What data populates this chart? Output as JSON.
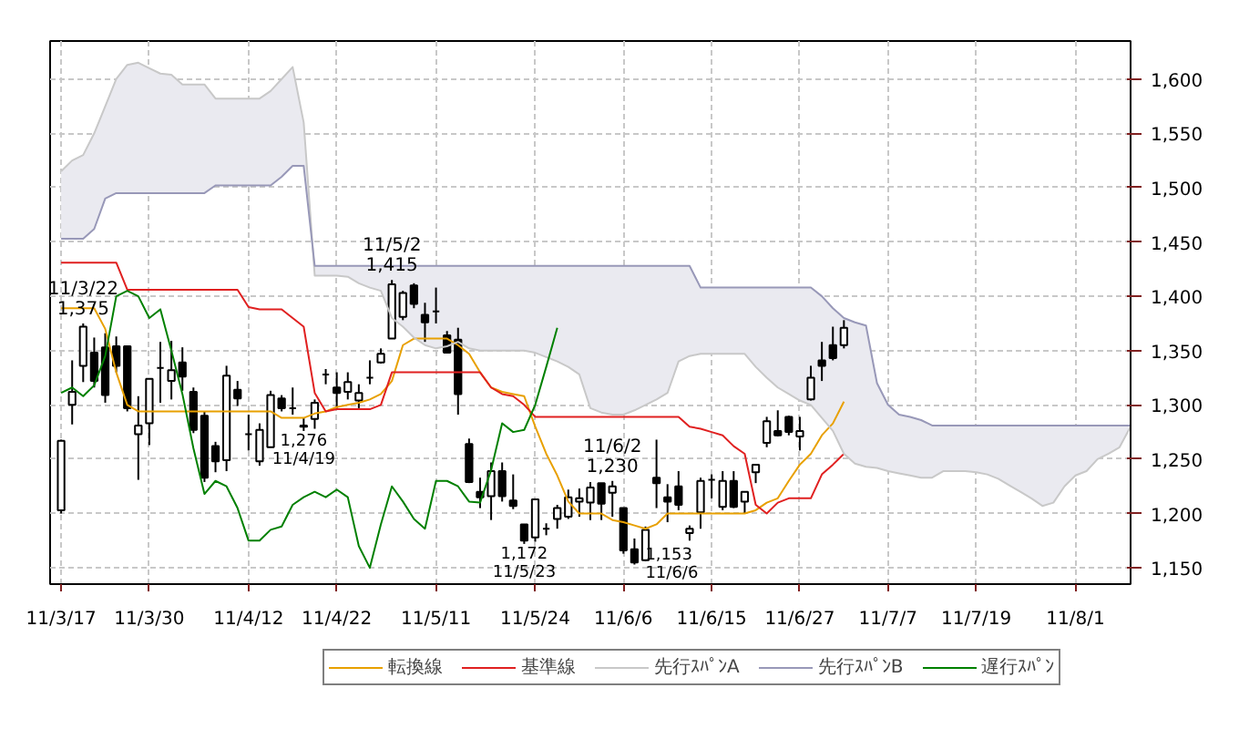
{
  "chart_data": {
    "type": "candlestick",
    "color": "#000000",
    "categories": [
      "11/3/17",
      null,
      null,
      null,
      null,
      null,
      null,
      null,
      "11/3/30",
      null,
      null,
      null,
      null,
      null,
      null,
      null,
      null,
      "11/4/12",
      null,
      null,
      null,
      null,
      null,
      null,
      null,
      "11/4/22",
      null,
      null,
      null,
      null,
      null,
      null,
      null,
      null,
      "11/5/11",
      null,
      null,
      null,
      null,
      null,
      null,
      null,
      null,
      "11/5/24",
      null,
      null,
      null,
      null,
      null,
      null,
      null,
      "11/6/6",
      null,
      null,
      null,
      null,
      null,
      null,
      null,
      "11/6/15",
      null,
      null,
      null,
      null,
      null,
      null,
      null,
      "11/6/27",
      null,
      null,
      null,
      null,
      null,
      null,
      null,
      "11/7/7",
      null,
      null,
      null,
      null,
      null,
      null,
      null,
      "11/7/19",
      null,
      null,
      null,
      null,
      null,
      null,
      null,
      null,
      "11/8/1",
      null,
      null,
      null,
      null,
      null
    ],
    "ohlc": [
      [
        1203,
        1268,
        1200,
        1267
      ],
      [
        1300,
        1341,
        1282,
        1312
      ],
      [
        1336,
        1375,
        1321,
        1372
      ],
      [
        1348,
        1362,
        1316,
        1322
      ],
      [
        1353,
        1366,
        1302,
        1309
      ],
      [
        1354,
        1363,
        1330,
        1336
      ],
      [
        1354,
        1354,
        1294,
        1297
      ],
      [
        1273,
        1308,
        1231,
        1281
      ],
      [
        1283,
        1324,
        1263,
        1324
      ],
      [
        1334,
        1358,
        1302,
        1334
      ],
      [
        1322,
        1359,
        1305,
        1332
      ],
      [
        1339,
        1353,
        1313,
        1326
      ],
      [
        1312,
        1316,
        1274,
        1277
      ],
      [
        1290,
        1294,
        1229,
        1233
      ],
      [
        1262,
        1266,
        1238,
        1248
      ],
      [
        1249,
        1336,
        1239,
        1327
      ],
      [
        1314,
        1322,
        1299,
        1306
      ],
      [
        1273,
        1291,
        1258,
        1273
      ],
      [
        1248,
        1283,
        1244,
        1277
      ],
      [
        1261,
        1313,
        1261,
        1309
      ],
      [
        1306,
        1309,
        1294,
        1297
      ],
      [
        1297,
        1316,
        1291,
        1297
      ],
      [
        1280,
        1288,
        1276,
        1281
      ],
      [
        1287,
        1305,
        1278,
        1302
      ],
      [
        1328,
        1333,
        1319,
        1328
      ],
      [
        1316,
        1330,
        1297,
        1311
      ],
      [
        1312,
        1330,
        1305,
        1321
      ],
      [
        1304,
        1319,
        1297,
        1311
      ],
      [
        1325,
        1341,
        1319,
        1325
      ],
      [
        1339,
        1352,
        1338,
        1347
      ],
      [
        1361,
        1415,
        1361,
        1411
      ],
      [
        1381,
        1405,
        1378,
        1403
      ],
      [
        1410,
        1412,
        1389,
        1393
      ],
      [
        1383,
        1394,
        1358,
        1376
      ],
      [
        1386,
        1408,
        1375,
        1386
      ],
      [
        1364,
        1368,
        1348,
        1348
      ],
      [
        1360,
        1371,
        1291,
        1310
      ],
      [
        1264,
        1269,
        1228,
        1229
      ],
      [
        1220,
        1233,
        1205,
        1215
      ],
      [
        1216,
        1247,
        1194,
        1239
      ],
      [
        1239,
        1247,
        1211,
        1216
      ],
      [
        1212,
        1236,
        1204,
        1207
      ],
      [
        1190,
        1190,
        1172,
        1175
      ],
      [
        1178,
        1213,
        1174,
        1213
      ],
      [
        1186,
        1191,
        1180,
        1186
      ],
      [
        1195,
        1208,
        1186,
        1205
      ],
      [
        1197,
        1222,
        1195,
        1215
      ],
      [
        1211,
        1223,
        1197,
        1214
      ],
      [
        1210,
        1229,
        1194,
        1224
      ],
      [
        1228,
        1228,
        1194,
        1209
      ],
      [
        1219,
        1230,
        1197,
        1225
      ],
      [
        1205,
        1205,
        1163,
        1166
      ],
      [
        1167,
        1177,
        1153,
        1155
      ],
      [
        1157,
        1188,
        1156,
        1185
      ],
      [
        1233,
        1268,
        1205,
        1228
      ],
      [
        1215,
        1227,
        1192,
        1211
      ],
      [
        1225,
        1239,
        1203,
        1208
      ],
      [
        1182,
        1189,
        1175,
        1186
      ],
      [
        1201,
        1233,
        1186,
        1230
      ],
      [
        1231,
        1236,
        1214,
        1231
      ],
      [
        1206,
        1239,
        1203,
        1230
      ],
      [
        1230,
        1239,
        1205,
        1206
      ],
      [
        1211,
        1220,
        1200,
        1220
      ],
      [
        1238,
        1245,
        1228,
        1245
      ],
      [
        1265,
        1289,
        1261,
        1285
      ],
      [
        1276,
        1295,
        1271,
        1272
      ],
      [
        1289,
        1290,
        1272,
        1275
      ],
      [
        1271,
        1289,
        1258,
        1276
      ],
      [
        1305,
        1336,
        1304,
        1325
      ],
      [
        1341,
        1358,
        1322,
        1336
      ],
      [
        1355,
        1372,
        1341,
        1343
      ],
      [
        1355,
        1378,
        1352,
        1371
      ],
      null,
      null,
      null,
      null,
      null,
      null,
      null,
      null,
      null,
      null,
      null,
      null,
      null,
      null,
      null,
      null,
      null,
      null,
      null,
      null,
      null,
      null,
      null,
      null,
      null,
      null
    ],
    "series": [
      {
        "type": "line",
        "name": "転換線",
        "color": "#e8a000",
        "values": [
          1389,
          1389,
          1389,
          1389,
          1370,
          1330,
          1300,
          1294,
          1294,
          1294,
          1294,
          1294,
          1294,
          1294,
          1294,
          1294,
          1294,
          1294,
          1294,
          1294,
          1288,
          1288,
          1288,
          1292,
          1294,
          1298,
          1300,
          1302,
          1305,
          1310,
          1322,
          1355,
          1361,
          1361,
          1361,
          1361,
          1355,
          1347,
          1330,
          1316,
          1312,
          1310,
          1308,
          1280,
          1255,
          1235,
          1211,
          1200,
          1200,
          1200,
          1194,
          1192,
          1189,
          1186,
          1190,
          1200,
          1200,
          1200,
          1200,
          1200,
          1200,
          1200,
          1200,
          1203,
          1210,
          1214,
          1230,
          1245,
          1255,
          1272,
          1283,
          1303,
          null,
          null,
          null,
          null,
          null,
          null,
          null,
          null,
          null,
          null,
          null,
          null,
          null,
          null,
          null,
          null,
          null,
          null,
          null,
          null,
          null,
          null,
          null,
          null,
          null,
          null
        ]
      },
      {
        "type": "line",
        "name": "基準線",
        "color": "#e02020",
        "values": [
          1431,
          1431,
          1431,
          1431,
          1431,
          1431,
          1406,
          1406,
          1406,
          1406,
          1406,
          1406,
          1406,
          1406,
          1406,
          1406,
          1406,
          1390,
          1388,
          1388,
          1388,
          1380,
          1372,
          1311,
          1294,
          1296,
          1296,
          1296,
          1296,
          1300,
          1330,
          1330,
          1330,
          1330,
          1330,
          1330,
          1330,
          1330,
          1330,
          1316,
          1310,
          1308,
          1300,
          1289,
          1289,
          1289,
          1289,
          1289,
          1289,
          1289,
          1289,
          1289,
          1289,
          1289,
          1289,
          1289,
          1289,
          1280,
          1278,
          1275,
          1272,
          1262,
          1255,
          1208,
          1200,
          1210,
          1214,
          1214,
          1214,
          1236,
          1245,
          1255,
          null,
          null,
          null,
          null,
          null,
          null,
          null,
          null,
          null,
          null,
          null,
          null,
          null,
          null,
          null,
          null,
          null,
          null,
          null,
          null,
          null,
          null,
          null,
          null,
          null,
          null
        ]
      },
      {
        "type": "line",
        "name": "先行ｽﾊﾟﾝA",
        "color": "#c8c8c8",
        "values": [
          1515,
          1525,
          1530,
          1550,
          1575,
          1600,
          1613,
          1615,
          1610,
          1605,
          1604,
          1595,
          1595,
          1595,
          1582,
          1582,
          1582,
          1582,
          1582,
          1589,
          1600,
          1611,
          1560,
          1419,
          1419,
          1419,
          1418,
          1412,
          1408,
          1405,
          1380,
          1372,
          1362,
          1355,
          1352,
          1354,
          1358,
          1352,
          1350,
          1350,
          1350,
          1350,
          1350,
          1348,
          1344,
          1340,
          1335,
          1328,
          1297,
          1293,
          1291,
          1291,
          1295,
          1300,
          1305,
          1311,
          1340,
          1345,
          1347,
          1347,
          1347,
          1347,
          1347,
          1335,
          1325,
          1316,
          1310,
          1304,
          1300,
          1288,
          1276,
          1255,
          1246,
          1243,
          1242,
          1239,
          1237,
          1235,
          1233,
          1233,
          1239,
          1239,
          1239,
          1238,
          1236,
          1232,
          1226,
          1220,
          1214,
          1207,
          1210,
          1225,
          1235,
          1239,
          1250,
          1255,
          1261,
          1280
        ]
      },
      {
        "type": "line",
        "name": "先行ｽﾊﾟﾝB",
        "color": "#9898b8",
        "values": [
          1453,
          1453,
          1453,
          1462,
          1490,
          1495,
          1495,
          1495,
          1495,
          1495,
          1495,
          1495,
          1495,
          1495,
          1502,
          1502,
          1502,
          1502,
          1502,
          1502,
          1510,
          1520,
          1520,
          1428,
          1428,
          1428,
          1428,
          1428,
          1428,
          1428,
          1428,
          1428,
          1428,
          1428,
          1428,
          1428,
          1428,
          1428,
          1428,
          1428,
          1428,
          1428,
          1428,
          1428,
          1428,
          1428,
          1428,
          1428,
          1428,
          1428,
          1428,
          1428,
          1428,
          1428,
          1428,
          1428,
          1428,
          1428,
          1408,
          1408,
          1408,
          1408,
          1408,
          1408,
          1408,
          1408,
          1408,
          1408,
          1408,
          1400,
          1389,
          1380,
          1376,
          1373,
          1320,
          1300,
          1291,
          1289,
          1286,
          1281,
          1281,
          1281,
          1281,
          1281,
          1281,
          1281,
          1281,
          1281,
          1281,
          1281,
          1281,
          1281,
          1281,
          1281,
          1281,
          1281,
          1281,
          1281
        ]
      },
      {
        "type": "line",
        "name": "遅行ｽﾊﾟﾝ",
        "color": "#008000",
        "values": [
          1311,
          1316,
          1308,
          1318,
          1345,
          1400,
          1405,
          1400,
          1380,
          1388,
          1350,
          1310,
          1260,
          1218,
          1230,
          1225,
          1205,
          1175,
          1175,
          1185,
          1188,
          1208,
          1215,
          1220,
          1215,
          1222,
          1215,
          1170,
          1150,
          1190,
          1225,
          1211,
          1195,
          1186,
          1230,
          1230,
          1225,
          1211,
          1210,
          1240,
          1283,
          1275,
          1277,
          1300,
          1335,
          1371,
          null,
          null,
          null,
          null,
          null,
          null,
          null,
          null,
          null,
          null,
          null,
          null,
          null,
          null,
          null,
          null,
          null,
          null,
          null,
          null,
          null,
          null,
          null,
          null,
          null,
          null,
          null,
          null,
          null,
          null,
          null,
          null,
          null,
          null,
          null,
          null,
          null,
          null,
          null,
          null,
          null,
          null,
          null,
          null,
          null,
          null,
          null,
          null,
          null,
          null,
          null,
          null
        ]
      }
    ],
    "ylim": [
      1135,
      1635
    ],
    "yticks": [
      {
        "value": 1150,
        "label": "1,150"
      },
      {
        "value": 1200,
        "label": "1,200"
      },
      {
        "value": 1250,
        "label": "1,250"
      },
      {
        "value": 1300,
        "label": "1,300"
      },
      {
        "value": 1350,
        "label": "1,350"
      },
      {
        "value": 1400,
        "label": "1,400"
      },
      {
        "value": 1450,
        "label": "1,450"
      },
      {
        "value": 1500,
        "label": "1,500"
      },
      {
        "value": 1550,
        "label": "1,550"
      },
      {
        "value": 1600,
        "label": "1,600"
      }
    ],
    "grid": true,
    "legend": "bottom",
    "annotations": [
      {
        "text": "11/3/22\n1,375",
        "y": 1375
      },
      {
        "text": "1,276\n11/4/19",
        "y": 1276
      },
      {
        "text": "11/5/2\n1,415",
        "y": 1415
      },
      {
        "text": "1,172\n11/5/23",
        "y": 1172
      },
      {
        "text": "11/6/2\n1,230",
        "y": 1230
      },
      "1,153\n11/6/6"
    ]
  }
}
